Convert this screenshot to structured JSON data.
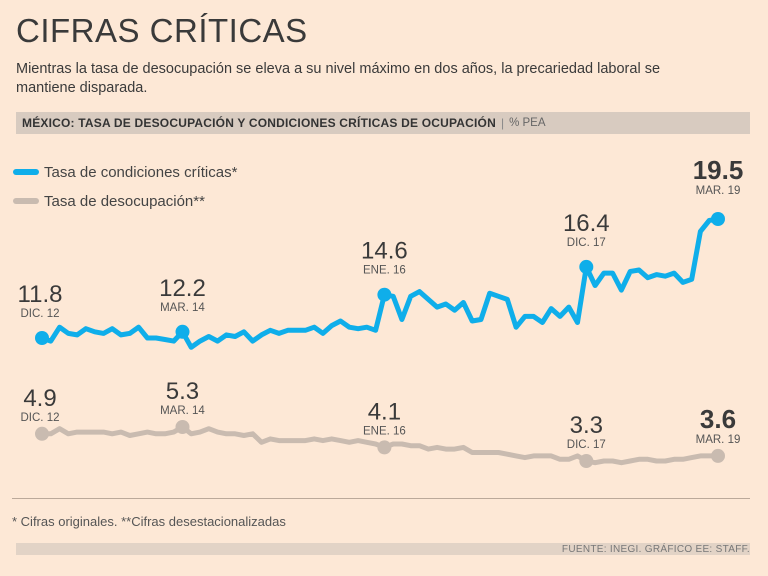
{
  "title": "CIFRAS CRÍTICAS",
  "subtitle": "Mientras la tasa de desocupación se eleva a su nivel máximo en dos años, la precariedad laboral se mantiene disparada.",
  "header": {
    "chart_title": "MÉXICO: TASA DE DESOCUPACIÓN Y CONDICIONES CRÍTICAS DE OCUPACIÓN",
    "separator": "|",
    "unit": "% PEA"
  },
  "footnote": "* Cifras originales. **Cifras desestacionalizadas",
  "source": "FUENTE: INEGI. GRÁFICO EE: STAFF.",
  "colors": {
    "background": "#fde8d6",
    "critical": "#0faeea",
    "unemployment": "#c9bbb0",
    "text": "#3a3a3a"
  },
  "chart_data": {
    "type": "line",
    "title": "MÉXICO: TASA DE DESOCUPACIÓN Y CONDICIONES CRÍTICAS DE OCUPACIÓN",
    "ylabel": "% PEA",
    "x_range": [
      "DIC. 12",
      "MAR. 19"
    ],
    "series": [
      {
        "name": "Tasa de condiciones críticas*",
        "color": "#0faeea",
        "values": [
          11.8,
          11.6,
          12.5,
          12.1,
          12.0,
          12.4,
          12.2,
          12.1,
          12.4,
          12.0,
          12.1,
          12.5,
          11.8,
          11.8,
          11.7,
          11.6,
          12.2,
          11.2,
          11.6,
          11.9,
          11.6,
          12.0,
          11.9,
          12.2,
          11.6,
          12.0,
          12.3,
          12.1,
          12.3,
          12.3,
          12.3,
          12.5,
          12.1,
          12.6,
          12.9,
          12.5,
          12.4,
          12.5,
          12.3,
          14.6,
          14.5,
          13.0,
          14.5,
          14.8,
          14.3,
          13.8,
          14.0,
          13.6,
          14.1,
          12.9,
          13.0,
          14.7,
          14.5,
          14.3,
          12.5,
          13.2,
          13.2,
          12.8,
          13.7,
          13.2,
          13.8,
          12.8,
          16.4,
          15.2,
          16.0,
          16.0,
          14.9,
          16.1,
          16.2,
          15.7,
          15.9,
          15.8,
          16.0,
          15.4,
          15.6,
          18.7,
          19.4,
          19.5
        ],
        "annotations": [
          {
            "label": "DIC. 12",
            "value": "11.8"
          },
          {
            "label": "MAR. 14",
            "value": "12.2"
          },
          {
            "label": "ENE. 16",
            "value": "14.6"
          },
          {
            "label": "DIC. 17",
            "value": "16.4"
          },
          {
            "label": "MAR. 19",
            "value": "19.5"
          }
        ]
      },
      {
        "name": "Tasa de desocupación**",
        "color": "#c9bbb0",
        "values": [
          4.9,
          4.9,
          5.2,
          4.9,
          5.0,
          5.0,
          5.0,
          5.0,
          4.9,
          5.0,
          4.8,
          4.9,
          5.0,
          4.9,
          4.9,
          5.0,
          5.3,
          4.9,
          5.0,
          5.2,
          5.0,
          4.9,
          4.9,
          4.8,
          4.9,
          4.4,
          4.6,
          4.5,
          4.5,
          4.5,
          4.5,
          4.6,
          4.5,
          4.6,
          4.5,
          4.4,
          4.5,
          4.4,
          4.3,
          4.1,
          4.3,
          4.3,
          4.2,
          4.2,
          4.0,
          4.1,
          4.0,
          4.0,
          4.1,
          3.8,
          3.8,
          3.8,
          3.8,
          3.7,
          3.6,
          3.5,
          3.6,
          3.6,
          3.6,
          3.4,
          3.4,
          3.6,
          3.3,
          3.2,
          3.3,
          3.3,
          3.2,
          3.3,
          3.4,
          3.4,
          3.3,
          3.3,
          3.4,
          3.4,
          3.5,
          3.6,
          3.6,
          3.6
        ],
        "annotations": [
          {
            "label": "DIC. 12",
            "value": "4.9"
          },
          {
            "label": "MAR. 14",
            "value": "5.3"
          },
          {
            "label": "ENE. 16",
            "value": "4.1"
          },
          {
            "label": "DIC. 17",
            "value": "3.3"
          },
          {
            "label": "MAR. 19",
            "value": "3.6"
          }
        ]
      }
    ],
    "legend": [
      "Tasa de condiciones críticas*",
      "Tasa de desocupación**"
    ],
    "legend_position": "top-left",
    "grid": false
  }
}
